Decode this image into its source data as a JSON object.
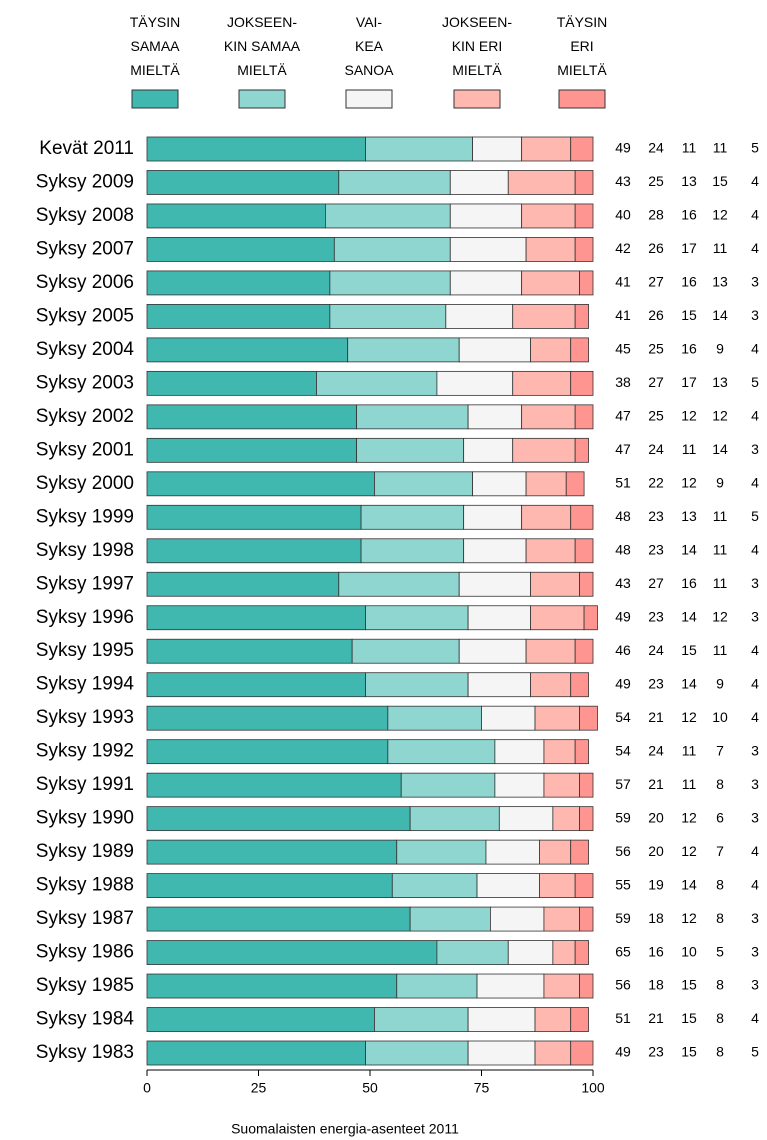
{
  "chart_data": {
    "type": "stacked-bar-horizontal",
    "caption": "Suomalaisten energia-asenteet 2011",
    "categories": [
      "Kevät 2011",
      "Syksy 2009",
      "Syksy 2008",
      "Syksy 2007",
      "Syksy 2006",
      "Syksy 2005",
      "Syksy 2004",
      "Syksy 2003",
      "Syksy 2002",
      "Syksy 2001",
      "Syksy 2000",
      "Syksy 1999",
      "Syksy 1998",
      "Syksy 1997",
      "Syksy 1996",
      "Syksy 1995",
      "Syksy 1994",
      "Syksy 1993",
      "Syksy 1992",
      "Syksy 1991",
      "Syksy 1990",
      "Syksy 1989",
      "Syksy 1988",
      "Syksy 1987",
      "Syksy 1986",
      "Syksy 1985",
      "Syksy 1984",
      "Syksy 1983"
    ],
    "series": [
      {
        "name": "TÄYSIN\nSAMAA\nMIELTÄ",
        "color": "#40b8b0",
        "values": [
          49,
          43,
          40,
          42,
          41,
          41,
          45,
          38,
          47,
          47,
          51,
          48,
          48,
          43,
          49,
          46,
          49,
          54,
          54,
          57,
          59,
          56,
          55,
          59,
          65,
          56,
          51,
          49
        ]
      },
      {
        "name": "JOKSEEN-\nKIN SAMAA\nMIELTÄ",
        "color": "#8fd5d0",
        "values": [
          24,
          25,
          28,
          26,
          27,
          26,
          25,
          27,
          25,
          24,
          22,
          23,
          23,
          27,
          23,
          24,
          23,
          21,
          24,
          21,
          20,
          20,
          19,
          18,
          16,
          18,
          21,
          23
        ]
      },
      {
        "name": "VAI-\nKEA\nSANOA",
        "color": "#f5f5f5",
        "values": [
          11,
          13,
          16,
          17,
          16,
          15,
          16,
          17,
          12,
          11,
          12,
          13,
          14,
          16,
          14,
          15,
          14,
          12,
          11,
          11,
          12,
          12,
          14,
          12,
          10,
          15,
          15,
          15
        ]
      },
      {
        "name": "JOKSEEN-\nKIN ERI\nMIELTÄ",
        "color": "#ffb8b0",
        "values": [
          11,
          15,
          12,
          11,
          13,
          14,
          9,
          13,
          12,
          14,
          9,
          11,
          11,
          11,
          12,
          11,
          9,
          10,
          7,
          8,
          6,
          7,
          8,
          8,
          5,
          8,
          8,
          8
        ]
      },
      {
        "name": "TÄYSIN\nERI\nMIELTÄ",
        "color": "#ff9590",
        "values": [
          5,
          4,
          4,
          4,
          3,
          3,
          4,
          5,
          4,
          3,
          4,
          5,
          4,
          3,
          3,
          4,
          4,
          4,
          3,
          3,
          3,
          4,
          4,
          3,
          3,
          3,
          4,
          5
        ]
      }
    ],
    "xlim": [
      0,
      100
    ],
    "xticks": [
      0,
      25,
      50,
      75,
      100
    ]
  }
}
